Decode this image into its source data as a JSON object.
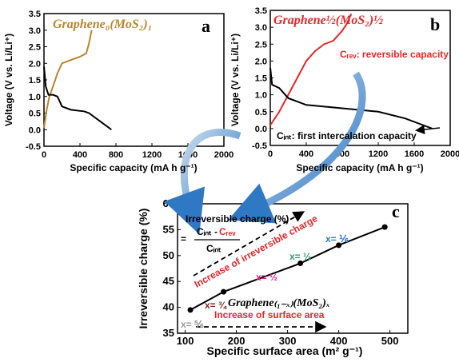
{
  "chart_data": [
    {
      "type": "line",
      "panel_label": "a",
      "annotations": [
        "Graphene₀(MoS₂)₁"
      ],
      "x_label": "Specific capacity (mA h g⁻¹)",
      "y_label": "Voltage (V vs. Li/Li⁺)",
      "xlim": [
        0,
        2000
      ],
      "ylim": [
        -0.5,
        3.5
      ],
      "xticks": [
        0,
        400,
        800,
        1200,
        1600,
        2000
      ],
      "yticks": [
        -0.5,
        {
          "value": 0,
          "label": "0.0"
        },
        0.5,
        {
          "value": 1,
          "label": "1.0"
        },
        1.5,
        {
          "value": 2,
          "label": "2.0"
        },
        2.5,
        {
          "value": 3,
          "label": "3.0"
        },
        3.5
      ],
      "series": [
        {
          "color": "#b8862c",
          "x": [
            0,
            30,
            60,
            100,
            150,
            200,
            300,
            400,
            470,
            500,
            530
          ],
          "values": [
            0.05,
            0.6,
            1.0,
            1.3,
            1.7,
            2.0,
            2.1,
            2.2,
            2.3,
            2.6,
            3.0
          ]
        },
        {
          "color": "#000000",
          "x": [
            0,
            20,
            50,
            100,
            150,
            200,
            300,
            450,
            500,
            600,
            700,
            750
          ],
          "values": [
            1.9,
            1.3,
            1.05,
            1.05,
            1.0,
            0.7,
            0.6,
            0.55,
            0.5,
            0.3,
            0.1,
            0.0
          ]
        }
      ]
    },
    {
      "type": "line",
      "panel_label": "b",
      "annotations": [
        "Graphene½(MoS₂)½",
        "Cᵣₑᵥ: reversible capacity",
        "Cᵢₙₜ: first intercalation capacity"
      ],
      "x_label": "Specific capacity (mA h g⁻¹)",
      "y_label": "Voltage (V vs. Li/Li⁺)",
      "xlim": [
        0,
        2000
      ],
      "ylim": [
        -0.5,
        3.5
      ],
      "xticks": [
        0,
        400,
        800,
        1200,
        1600,
        2000
      ],
      "yticks": [
        -0.5,
        {
          "value": 0,
          "label": "0.0"
        },
        0.5,
        {
          "value": 1,
          "label": "1.0"
        },
        1.5,
        {
          "value": 2,
          "label": "2.0"
        },
        2.5,
        {
          "value": 3,
          "label": "3.0"
        },
        3.5
      ],
      "series": [
        {
          "color": "#e8262a",
          "x": [
            0,
            100,
            200,
            300,
            400,
            500,
            600,
            700,
            800,
            850,
            900
          ],
          "values": [
            0.1,
            0.5,
            1.0,
            1.5,
            2.0,
            2.3,
            2.5,
            2.6,
            2.9,
            3.1,
            3.4
          ]
        },
        {
          "color": "#000000",
          "x": [
            0,
            20,
            100,
            200,
            400,
            800,
            1200,
            1500,
            1800
          ],
          "values": [
            1.8,
            1.3,
            1.2,
            0.9,
            0.7,
            0.6,
            0.5,
            0.3,
            0.0
          ]
        }
      ]
    },
    {
      "type": "line",
      "panel_label": "c",
      "markers": true,
      "annotations": [
        "Irreversible charge (%)",
        "=",
        "Cᵢₙₜ -",
        "Cᵣₑᵥ",
        "Cᵢₙₜ",
        "Increase of irreversible charge",
        "Increase of surface area",
        "Graphene₍₁₋ₓ₎(MoS₂)ₓ",
        "x= ⅚",
        "x= ¾",
        "x= ½",
        "x= ⅓",
        "x= ⅙"
      ],
      "x_label": "Specific surface area (m² g⁻¹)",
      "y_label": "Irreversible charge (%)",
      "xlim": [
        85,
        535
      ],
      "ylim": [
        35,
        60
      ],
      "xticks": [
        100,
        200,
        300,
        400,
        500
      ],
      "yticks": [
        35,
        40,
        45,
        50,
        55,
        60
      ],
      "series": [
        {
          "color": "#000000",
          "x": [
            110,
            175,
            325,
            400,
            490
          ],
          "values": [
            39.5,
            43,
            48.5,
            52,
            55.5
          ]
        }
      ]
    }
  ]
}
